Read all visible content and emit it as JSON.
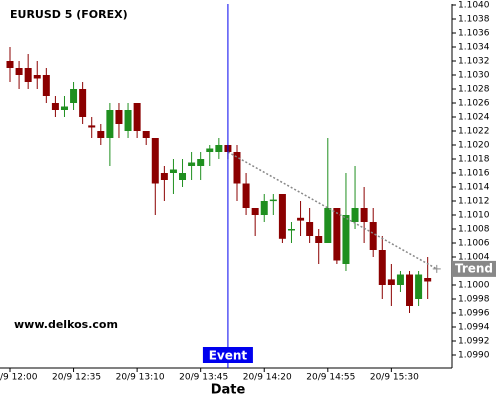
{
  "chart_data": {
    "type": "candlestick",
    "title": "EURUSD 5 (FOREX)",
    "watermark": "www.delkos.com",
    "x_label": "Date",
    "categories": [
      "20/9 12:00",
      null,
      null,
      null,
      null,
      null,
      null,
      "20/9 12:35",
      null,
      null,
      null,
      null,
      null,
      null,
      "20/9 13:10",
      null,
      null,
      null,
      null,
      null,
      null,
      "20/9 13:45",
      null,
      null,
      null,
      null,
      null,
      null,
      "20/9 14:20",
      null,
      null,
      null,
      null,
      null,
      null,
      "20/9 14:55",
      null,
      null,
      null,
      null,
      null,
      null,
      "20/9 15:30",
      null,
      null,
      null,
      null
    ],
    "open": [
      1.1032,
      1.1031,
      1.1031,
      1.103,
      1.103,
      1.1026,
      1.1025,
      1.1026,
      1.1028,
      1.10228,
      1.1022,
      1.1021,
      1.1025,
      1.1022,
      1.1026,
      1.1022,
      1.1021,
      1.1016,
      1.1016,
      1.1015,
      1.1017,
      1.1017,
      1.1019,
      1.1019,
      1.102,
      1.1019,
      1.10145,
      1.1011,
      1.101,
      1.1012,
      1.1013,
      1.10078,
      1.10096,
      1.1009,
      1.1007,
      1.1006,
      1.1011,
      1.1003,
      1.1009,
      1.1011,
      1.1009,
      1.1005,
      1.10008,
      1.1,
      1.10015,
      1.0998,
      1.1001
    ],
    "high": [
      1.1034,
      1.1032,
      1.1033,
      1.1032,
      1.1031,
      1.1027,
      1.1027,
      1.1029,
      1.1029,
      1.1024,
      1.1023,
      1.1026,
      1.1026,
      1.1026,
      1.1026,
      1.1022,
      1.1021,
      1.1017,
      1.1018,
      1.1018,
      1.1019,
      1.1019,
      1.102,
      1.1021,
      1.102,
      1.102,
      1.1016,
      1.1011,
      1.1013,
      1.1013,
      1.1013,
      1.1009,
      1.1012,
      1.1011,
      1.1008,
      1.1021,
      1.1011,
      1.1016,
      1.1017,
      1.1014,
      1.1011,
      1.1007,
      1.1003,
      1.1002,
      1.1002,
      1.1002,
      1.1004
    ],
    "low": [
      1.1029,
      1.1028,
      1.1028,
      1.1028,
      1.1026,
      1.1024,
      1.1024,
      1.1025,
      1.1023,
      1.1021,
      1.102,
      1.1017,
      1.1021,
      1.1021,
      1.1021,
      1.102,
      1.101,
      1.1012,
      1.1013,
      1.1014,
      1.1015,
      1.1015,
      1.1017,
      1.1018,
      1.1018,
      1.1012,
      1.101,
      1.1007,
      1.1009,
      1.101,
      1.1006,
      1.1006,
      1.1007,
      1.1006,
      1.1003,
      1.1006,
      1.1003,
      1.1002,
      1.1008,
      1.1006,
      1.1004,
      1.0998,
      1.0997,
      1.0999,
      1.0996,
      1.0997,
      1.0998
    ],
    "close": [
      1.1031,
      1.103,
      1.1029,
      1.10295,
      1.1027,
      1.1025,
      1.10255,
      1.1028,
      1.1024,
      1.10225,
      1.1021,
      1.1025,
      1.1023,
      1.1025,
      1.1022,
      1.1021,
      1.10145,
      1.1015,
      1.10165,
      1.1016,
      1.10175,
      1.1018,
      1.10195,
      1.102,
      1.1019,
      1.10145,
      1.1011,
      1.101,
      1.1012,
      1.10122,
      1.10066,
      1.1008,
      1.10092,
      1.1007,
      1.1006,
      1.1011,
      1.10035,
      1.101,
      1.1011,
      1.1009,
      1.1005,
      1.1,
      1.1,
      1.10015,
      1.0997,
      1.10015,
      1.10005
    ],
    "up_color": "#1f8f1f",
    "down_color": "#8b0000",
    "ylim": [
      1.0988,
      1.104
    ],
    "yticks": [
      {
        "value": 1.099,
        "label": "1.0990"
      },
      1.0992,
      1.0994,
      1.0996,
      1.0998,
      {
        "value": 1.1,
        "label": "1.1000"
      },
      1.1002,
      1.1004,
      1.1006,
      1.1008,
      {
        "value": 1.101,
        "label": "1.1010"
      },
      1.1012,
      1.1014,
      1.1016,
      1.1018,
      {
        "value": 1.102,
        "label": "1.1020"
      },
      1.1022,
      1.1024,
      1.1026,
      1.1028,
      {
        "value": 1.103,
        "label": "1.1030"
      },
      1.1032,
      1.1034,
      1.1036,
      1.1038,
      {
        "value": 1.104,
        "label": "1.1040"
      }
    ],
    "event": {
      "label": "Event",
      "x": 24,
      "color": "#0000ee"
    },
    "trend": {
      "label": "Trend",
      "x": [
        24,
        47
      ],
      "y": [
        1.1019,
        1.10023
      ],
      "color": "#888888"
    }
  }
}
